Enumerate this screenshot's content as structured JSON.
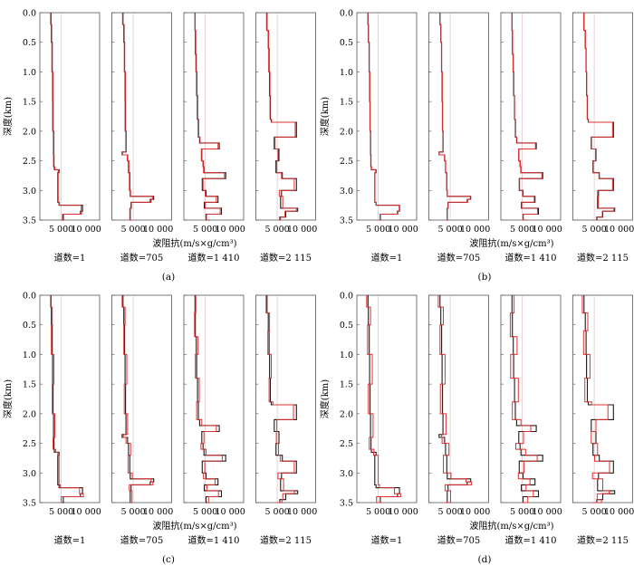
{
  "chart_data": [
    {
      "type": "line",
      "panel_label": "(a)",
      "ylabel": "深度(km)",
      "xlabel": "波阻抗(m/s×g/cm³)",
      "yticks": [
        "0.0",
        "0.5",
        "1.0",
        "1.5",
        "2.0",
        "2.5",
        "3.0",
        "3.5"
      ],
      "ylim": [
        0,
        3.5
      ],
      "xlim": [
        0,
        14000
      ],
      "xticks": [
        "5 000",
        "10 000"
      ],
      "series_colors": {
        "black": "#1a1a1a",
        "red": "#e03030"
      },
      "tracks": [
        {
          "label": "道数=1",
          "depth": [
            0,
            0.2,
            0.5,
            1.0,
            1.5,
            2.0,
            2.4,
            2.6,
            2.65,
            2.7,
            3.2,
            3.25,
            3.35,
            3.4,
            3.5
          ],
          "black": [
            2600,
            2700,
            2900,
            3000,
            3100,
            3200,
            3300,
            3400,
            4500,
            4200,
            4500,
            10000,
            9500,
            5500,
            5000
          ],
          "red": [
            2500,
            2800,
            2800,
            3100,
            3000,
            3300,
            3200,
            3500,
            4300,
            4300,
            4600,
            9700,
            9800,
            5300,
            5100
          ]
        },
        {
          "label": "道数=705",
          "depth": [
            0,
            0.2,
            0.5,
            1.0,
            1.5,
            2.0,
            2.35,
            2.4,
            2.5,
            2.7,
            3.0,
            3.1,
            3.15,
            3.2,
            3.3,
            3.5
          ],
          "black": [
            2600,
            2800,
            3000,
            3100,
            3200,
            3300,
            2400,
            3700,
            3900,
            4200,
            4300,
            9800,
            9000,
            4500,
            4300,
            4700
          ],
          "red": [
            2500,
            2900,
            2900,
            3200,
            3100,
            3400,
            2500,
            3600,
            4000,
            4100,
            4400,
            9500,
            9200,
            4600,
            4200,
            4800
          ]
        },
        {
          "label": "道数=1 410",
          "depth": [
            0,
            0.3,
            0.7,
            1.0,
            1.4,
            1.8,
            2.1,
            2.2,
            2.3,
            2.5,
            2.6,
            2.7,
            2.8,
            3.0,
            3.1,
            3.2,
            3.3,
            3.4,
            3.5
          ],
          "black": [
            2600,
            2700,
            2900,
            3000,
            3200,
            3400,
            3700,
            8300,
            4200,
            4500,
            4700,
            9800,
            4300,
            5200,
            8000,
            4800,
            8800,
            5200,
            6000
          ],
          "red": [
            2600,
            2800,
            2800,
            3100,
            3100,
            3500,
            3800,
            8000,
            4100,
            4600,
            4600,
            9500,
            4500,
            5000,
            7600,
            5000,
            8500,
            5300,
            5800
          ]
        },
        {
          "label": "道数=2 115",
          "depth": [
            0,
            0.3,
            0.6,
            1.0,
            1.4,
            1.8,
            1.85,
            2.1,
            2.3,
            2.5,
            2.7,
            2.8,
            3.0,
            3.1,
            3.3,
            3.35,
            3.45,
            3.5
          ],
          "black": [
            2600,
            2900,
            3100,
            3200,
            3400,
            3600,
            9500,
            4300,
            5400,
            4700,
            6200,
            9500,
            6000,
            5800,
            9800,
            7000,
            5600,
            5400
          ],
          "red": [
            2500,
            3000,
            3000,
            3300,
            3300,
            3700,
            9200,
            4500,
            5200,
            4900,
            6000,
            9000,
            5500,
            6300,
            9500,
            6800,
            5800,
            5200
          ]
        }
      ]
    },
    {
      "type": "line",
      "panel_label": "(b)",
      "ylabel": "深度(km)",
      "xlabel": "波阻抗(m/s×g/cm³)",
      "yticks": [
        "0.0",
        "0.5",
        "1.0",
        "1.5",
        "2.0",
        "2.5",
        "3.0",
        "3.5"
      ],
      "ylim": [
        0,
        3.5
      ],
      "xlim": [
        0,
        14000
      ],
      "xticks": [
        "5 000",
        "10 000"
      ],
      "series_colors": {
        "black": "#1a1a1a",
        "red": "#e03030"
      },
      "tracks": [
        {
          "label": "道数=1",
          "depth": [
            0,
            0.2,
            0.5,
            1.0,
            1.5,
            2.0,
            2.4,
            2.6,
            2.65,
            2.7,
            3.2,
            3.25,
            3.35,
            3.4,
            3.5
          ],
          "black": [
            2600,
            2700,
            2900,
            3000,
            3100,
            3200,
            3300,
            3400,
            4500,
            4200,
            4500,
            10000,
            9500,
            5500,
            5000
          ],
          "red": [
            2550,
            2750,
            2850,
            3050,
            3050,
            3250,
            3250,
            3450,
            4400,
            4250,
            4550,
            9900,
            9600,
            5400,
            5050
          ]
        },
        {
          "label": "道数=705",
          "depth": [
            0,
            0.2,
            0.5,
            1.0,
            1.5,
            2.0,
            2.35,
            2.4,
            2.5,
            2.7,
            3.0,
            3.1,
            3.15,
            3.2,
            3.3,
            3.5
          ],
          "black": [
            2600,
            2800,
            3000,
            3100,
            3200,
            3300,
            2400,
            3700,
            3900,
            4200,
            4300,
            9800,
            9000,
            4500,
            4300,
            4700
          ],
          "red": [
            2550,
            2850,
            2950,
            3150,
            3150,
            3350,
            2450,
            3650,
            3950,
            4150,
            4350,
            9700,
            9100,
            4550,
            4250,
            4750
          ]
        },
        {
          "label": "道数=1 410",
          "depth": [
            0,
            0.3,
            0.7,
            1.0,
            1.4,
            1.8,
            2.1,
            2.2,
            2.3,
            2.5,
            2.6,
            2.7,
            2.8,
            3.0,
            3.1,
            3.2,
            3.3,
            3.4,
            3.5
          ],
          "black": [
            2600,
            2700,
            2900,
            3000,
            3200,
            3400,
            3700,
            8300,
            4200,
            4500,
            4700,
            9800,
            4300,
            5200,
            8000,
            4800,
            8800,
            5200,
            6000
          ],
          "red": [
            2600,
            2750,
            2850,
            3050,
            3150,
            3450,
            3750,
            8100,
            4150,
            4550,
            4650,
            9600,
            4400,
            5100,
            7800,
            4900,
            8600,
            5250,
            5900
          ]
        },
        {
          "label": "道数=2 115",
          "depth": [
            0,
            0.3,
            0.6,
            1.0,
            1.4,
            1.8,
            1.85,
            2.1,
            2.3,
            2.5,
            2.7,
            2.8,
            3.0,
            3.1,
            3.3,
            3.35,
            3.45,
            3.5
          ],
          "black": [
            2600,
            2900,
            3100,
            3200,
            3400,
            3600,
            9500,
            4300,
            5400,
            4700,
            6200,
            9500,
            6000,
            5800,
            9800,
            7000,
            5600,
            5400
          ],
          "red": [
            2550,
            2950,
            3050,
            3250,
            3350,
            3650,
            9300,
            4400,
            5300,
            4800,
            6100,
            9300,
            5800,
            6000,
            9600,
            6900,
            5700,
            5300
          ]
        }
      ]
    },
    {
      "type": "line",
      "panel_label": "(c)",
      "ylabel": "深度(km)",
      "xlabel": "波阻抗(m/s×g/cm³)",
      "yticks": [
        "0.0",
        "0.5",
        "1.0",
        "1.5",
        "2.0",
        "2.5",
        "3.0",
        "3.5"
      ],
      "ylim": [
        0,
        3.5
      ],
      "xlim": [
        0,
        14000
      ],
      "xticks": [
        "5 000",
        "10 000"
      ],
      "series_colors": {
        "black": "#1a1a1a",
        "red": "#e03030"
      },
      "tracks": [
        {
          "label": "道数=1",
          "depth": [
            0,
            0.2,
            0.5,
            1.0,
            1.5,
            2.0,
            2.4,
            2.6,
            2.65,
            2.7,
            3.2,
            3.25,
            3.35,
            3.4,
            3.5
          ],
          "black": [
            2600,
            2700,
            2900,
            3000,
            3100,
            3200,
            3300,
            3400,
            4500,
            4200,
            4500,
            10000,
            9500,
            5500,
            5000
          ],
          "red": [
            2500,
            2900,
            2700,
            3300,
            2900,
            3500,
            3100,
            3700,
            4200,
            4500,
            4800,
            9300,
            10200,
            5000,
            5300
          ]
        },
        {
          "label": "道数=705",
          "depth": [
            0,
            0.2,
            0.5,
            1.0,
            1.5,
            2.0,
            2.35,
            2.4,
            2.5,
            2.7,
            3.0,
            3.1,
            3.15,
            3.2,
            3.3,
            3.5
          ],
          "black": [
            2600,
            2800,
            3000,
            3100,
            3200,
            3300,
            2400,
            3700,
            3900,
            4200,
            4300,
            9800,
            9000,
            4500,
            4300,
            4700
          ],
          "red": [
            2400,
            3100,
            2800,
            3500,
            2900,
            3700,
            2700,
            3300,
            4400,
            3800,
            4800,
            9200,
            9600,
            4100,
            4700,
            4300
          ]
        },
        {
          "label": "道数=1 410",
          "depth": [
            0,
            0.3,
            0.7,
            1.0,
            1.4,
            1.8,
            2.1,
            2.2,
            2.3,
            2.5,
            2.6,
            2.7,
            2.8,
            3.0,
            3.1,
            3.2,
            3.3,
            3.4,
            3.5
          ],
          "black": [
            2600,
            2700,
            2900,
            3000,
            3200,
            3400,
            3700,
            8300,
            4200,
            4500,
            4700,
            9800,
            4300,
            5200,
            8000,
            4800,
            8800,
            5200,
            6000
          ],
          "red": [
            2800,
            2500,
            3300,
            2700,
            3600,
            3000,
            4200,
            7600,
            4700,
            4000,
            5200,
            9000,
            4900,
            4600,
            7300,
            5400,
            8100,
            5800,
            5500
          ]
        },
        {
          "label": "道数=2 115",
          "depth": [
            0,
            0.3,
            0.6,
            1.0,
            1.4,
            1.8,
            1.85,
            2.1,
            2.3,
            2.5,
            2.7,
            2.8,
            3.0,
            3.1,
            3.3,
            3.35,
            3.45,
            3.5
          ],
          "black": [
            2600,
            2900,
            3100,
            3200,
            3400,
            3600,
            9500,
            4300,
            5400,
            4700,
            6200,
            9500,
            6000,
            5800,
            9800,
            7000,
            5600,
            5400
          ],
          "red": [
            2400,
            3200,
            2800,
            3600,
            3100,
            4000,
            8800,
            4900,
            4800,
            5300,
            5700,
            9000,
            5200,
            6500,
            9000,
            6300,
            6100,
            4900
          ]
        }
      ]
    },
    {
      "type": "line",
      "panel_label": "(d)",
      "ylabel": "深度(km)",
      "xlabel": "波阻抗(m/s×g/cm³)",
      "yticks": [
        "0.0",
        "0.5",
        "1.0",
        "1.5",
        "2.0",
        "2.5",
        "3.0",
        "3.5"
      ],
      "ylim": [
        0,
        3.5
      ],
      "xlim": [
        0,
        14000
      ],
      "xticks": [
        "5 000",
        "10 000"
      ],
      "series_colors": {
        "black": "#1a1a1a",
        "red": "#e03030"
      },
      "tracks": [
        {
          "label": "道数=1",
          "depth": [
            0,
            0.2,
            0.5,
            1.0,
            1.5,
            2.0,
            2.4,
            2.6,
            2.65,
            2.7,
            3.2,
            3.25,
            3.35,
            3.4,
            3.5
          ],
          "black": [
            2600,
            2700,
            2900,
            3000,
            3100,
            3200,
            3300,
            3400,
            4500,
            4200,
            4500,
            10000,
            9500,
            5500,
            5000
          ],
          "red": [
            2300,
            3200,
            2500,
            3600,
            2700,
            3800,
            2900,
            4000,
            3900,
            5000,
            5300,
            8800,
            10300,
            4600,
            5700
          ]
        },
        {
          "label": "道数=705",
          "depth": [
            0,
            0.2,
            0.5,
            1.0,
            1.5,
            2.0,
            2.35,
            2.4,
            2.5,
            2.7,
            3.0,
            3.1,
            3.15,
            3.2,
            3.3,
            3.5
          ],
          "black": [
            2600,
            2800,
            3000,
            3100,
            3200,
            3300,
            2400,
            3700,
            3900,
            4200,
            4300,
            9800,
            9000,
            4500,
            4300,
            4700
          ],
          "red": [
            2200,
            3400,
            2600,
            3800,
            2700,
            4000,
            3000,
            3100,
            4700,
            3400,
            5200,
            8700,
            10000,
            3800,
            5100,
            3900
          ]
        },
        {
          "label": "道数=1 410",
          "depth": [
            0,
            0.3,
            0.7,
            1.0,
            1.4,
            1.8,
            2.1,
            2.2,
            2.3,
            2.5,
            2.6,
            2.7,
            2.8,
            3.0,
            3.1,
            3.2,
            3.3,
            3.4,
            3.5
          ],
          "black": [
            2600,
            2700,
            2900,
            3000,
            3200,
            3400,
            3700,
            8300,
            4200,
            4500,
            4700,
            9800,
            4300,
            5200,
            8000,
            4800,
            8800,
            5200,
            6000
          ],
          "red": [
            3100,
            2200,
            3800,
            2300,
            4100,
            2700,
            4700,
            7000,
            5300,
            3500,
            5800,
            8500,
            5400,
            4100,
            6800,
            5900,
            7600,
            6300,
            5000
          ]
        },
        {
          "label": "道数=2 115",
          "depth": [
            0,
            0.3,
            0.6,
            1.0,
            1.4,
            1.8,
            1.85,
            2.1,
            2.3,
            2.5,
            2.7,
            2.8,
            3.0,
            3.1,
            3.3,
            3.35,
            3.45,
            3.5
          ],
          "black": [
            2600,
            2900,
            3100,
            3200,
            3400,
            3600,
            9500,
            4300,
            5400,
            4700,
            6200,
            9500,
            6000,
            5800,
            9800,
            7000,
            5600,
            5400
          ],
          "red": [
            2200,
            3500,
            2500,
            4000,
            2800,
            4400,
            8200,
            5400,
            4300,
            5800,
            5100,
            8600,
            4600,
            7000,
            8500,
            5700,
            6700,
            4500
          ]
        }
      ]
    }
  ]
}
